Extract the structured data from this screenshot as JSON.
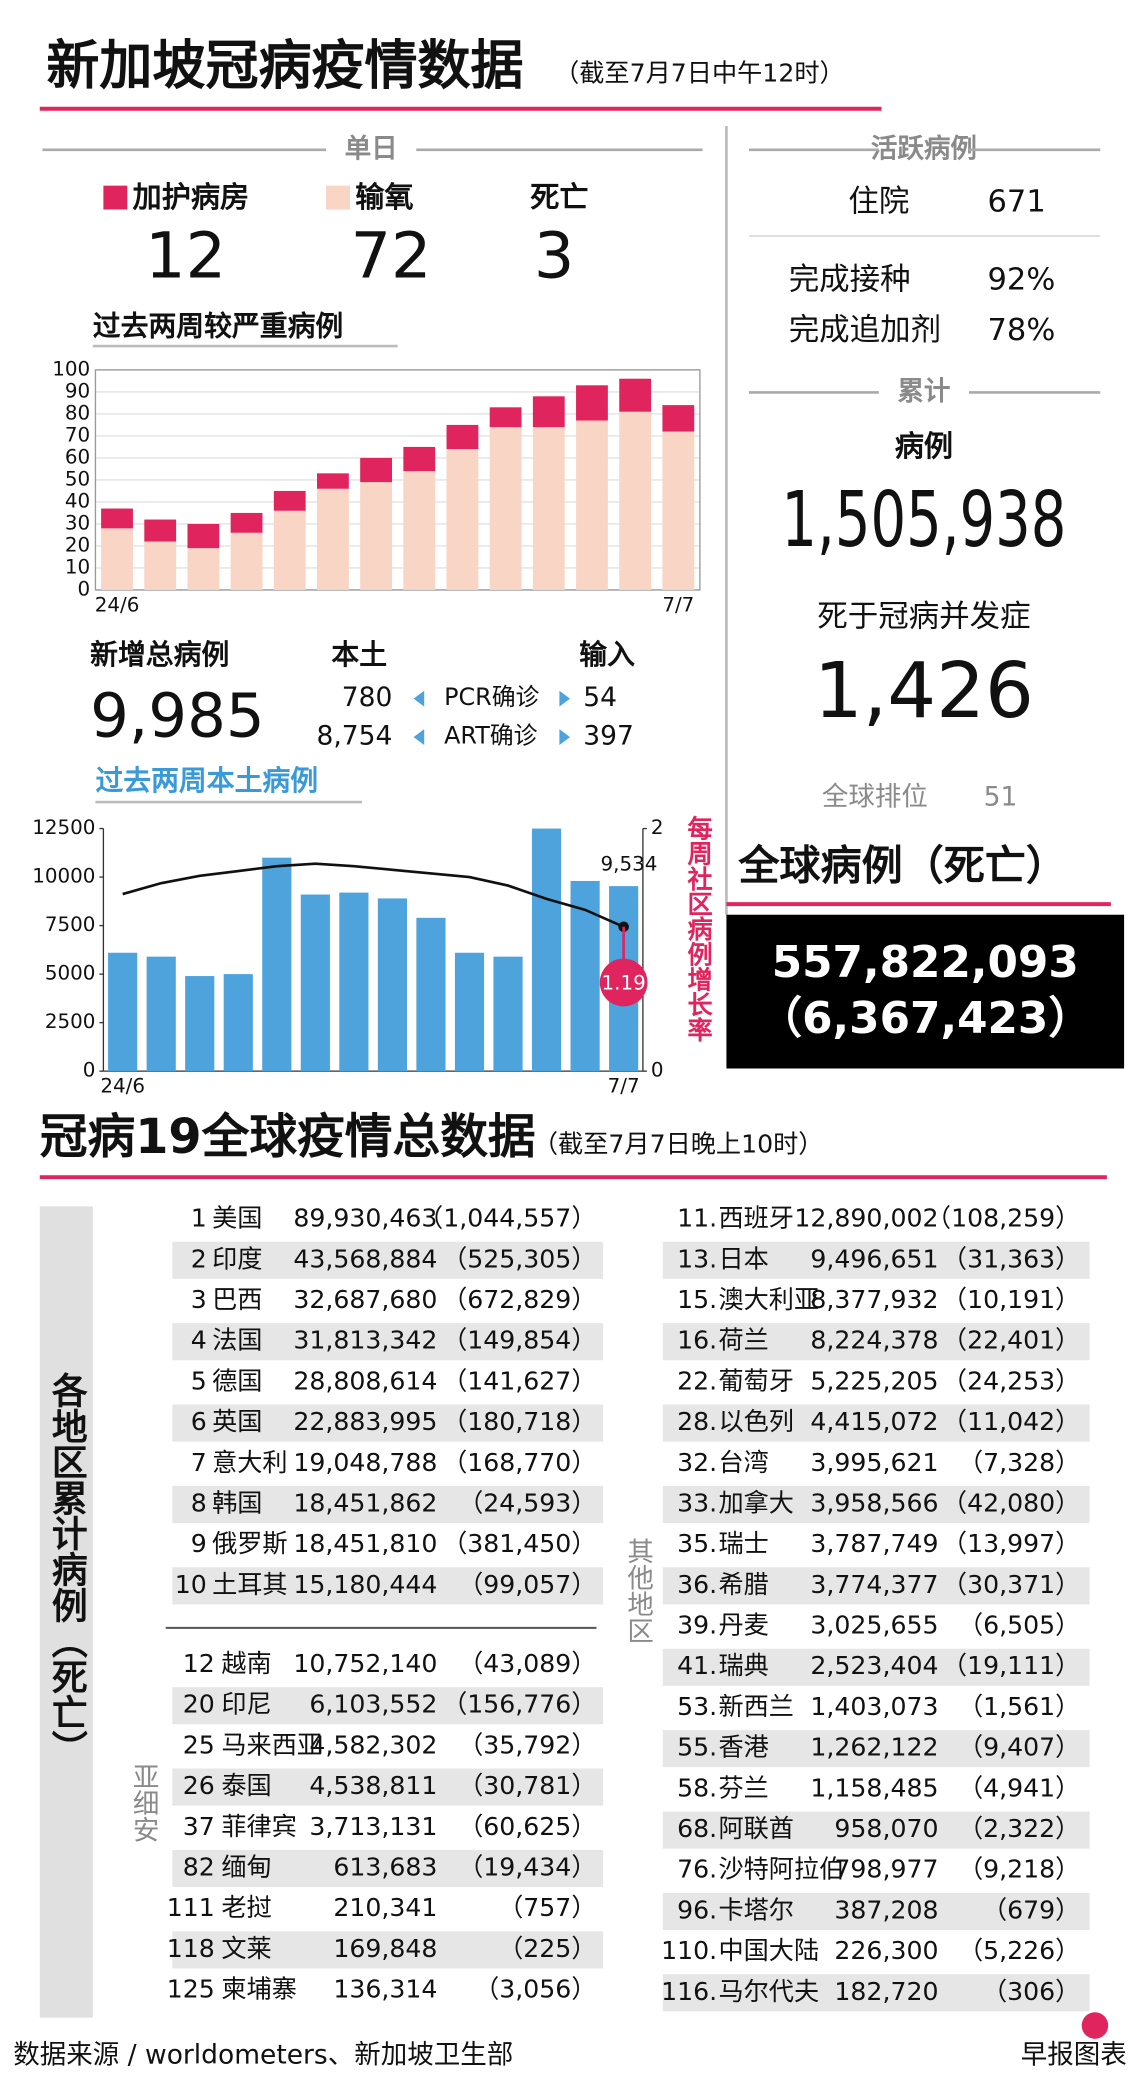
{
  "header": {
    "title": "新加坡冠病疫情数据",
    "note": "（截至7月7日中午12时）"
  },
  "daily": {
    "label": "单日",
    "icu": 12,
    "oxygen": 72,
    "death_label": "死亡",
    "deaths": 3
  },
  "chart_data": [
    {
      "type": "stacked_bar",
      "title": "过去两周较严重病例",
      "categories": [
        "24/6",
        null,
        null,
        null,
        null,
        null,
        null,
        null,
        null,
        null,
        null,
        null,
        null,
        "7/7"
      ],
      "series": [
        {
          "name": "输氧",
          "color": "#f8d5c4",
          "values": [
            28,
            22,
            19,
            26,
            36,
            46,
            49,
            54,
            64,
            74,
            74,
            77,
            81,
            72
          ]
        },
        {
          "name": "加护病房",
          "color": "#e0245e",
          "values": [
            9,
            10,
            11,
            9,
            9,
            7,
            11,
            11,
            11,
            9,
            14,
            16,
            15,
            12
          ]
        }
      ],
      "ylim": [
        0,
        100
      ],
      "yticks": [
        0,
        10,
        20,
        30,
        40,
        50,
        60,
        70,
        80,
        90,
        100
      ],
      "grid": true
    },
    {
      "type": "bar_line",
      "title": "过去两周本土病例",
      "categories": [
        "24/6",
        null,
        null,
        null,
        null,
        null,
        null,
        null,
        null,
        null,
        null,
        null,
        null,
        "7/7"
      ],
      "series": [
        {
          "color": "#4ea3dd",
          "values": [
            6100,
            5900,
            4900,
            5000,
            11000,
            9100,
            9200,
            8900,
            7900,
            6100,
            5900,
            12500,
            9800,
            9534
          ],
          "value_labels": [
            null,
            null,
            null,
            null,
            null,
            null,
            null,
            null,
            null,
            null,
            null,
            null,
            null,
            "9,534"
          ]
        },
        {
          "color": "#111111",
          "axis": "y2",
          "values": [
            1.46,
            1.55,
            1.61,
            1.65,
            1.69,
            1.71,
            1.69,
            1.66,
            1.63,
            1.6,
            1.53,
            1.42,
            1.33,
            1.19
          ],
          "value_labels": [
            null,
            null,
            null,
            null,
            null,
            null,
            null,
            null,
            null,
            null,
            null,
            null,
            null,
            "1.19"
          ]
        }
      ],
      "ylim": [
        0,
        12500
      ],
      "yticks": [
        0,
        2500,
        5000,
        7500,
        10000,
        12500
      ],
      "y2lim": [
        0,
        2
      ],
      "y2ticks": [
        0,
        2
      ],
      "y2label": "每周社区病例增长率"
    }
  ],
  "new_cases": {
    "label": "新增总病例",
    "total": "9,985",
    "local_label": "本土",
    "import_label": "输入",
    "rows": [
      [
        "780",
        "PCR确诊",
        "54"
      ],
      [
        "8,754",
        "ART确诊",
        "397"
      ]
    ]
  },
  "active": {
    "label": "活跃病例",
    "hospital_label": "住院",
    "hospital": "671",
    "vaccinated_label": "完成接种",
    "vaccinated": "92%",
    "booster_label": "完成追加剂",
    "booster": "78%"
  },
  "cumulative": {
    "label": "累计",
    "cases_label": "病例",
    "cases": "1,505,938",
    "deaths_label": "死于冠病并发症",
    "deaths": "1,426",
    "rank_label": "全球排位",
    "rank": "51"
  },
  "world_total": {
    "label": "全球病例（死亡）",
    "cases": "557,822,093",
    "deaths": "（6,367,423）"
  },
  "global": {
    "title": "冠病19全球疫情总数据",
    "note": "（截至7月7日晚上10时）",
    "side_label": "各地区累计病例（死亡）",
    "top10": {
      "rows": [
        [
          "1",
          "美国",
          "89,930,463",
          "（1,044,557）"
        ],
        [
          "2",
          "印度",
          "43,568,884",
          "（525,305）"
        ],
        [
          "3",
          "巴西",
          "32,687,680",
          "（672,829）"
        ],
        [
          "4",
          "法国",
          "31,813,342",
          "（149,854）"
        ],
        [
          "5",
          "德国",
          "28,808,614",
          "（141,627）"
        ],
        [
          "6",
          "英国",
          "22,883,995",
          "（180,718）"
        ],
        [
          "7",
          "意大利",
          "19,048,788",
          "（168,770）"
        ],
        [
          "8",
          "韩国",
          "18,451,862",
          "（24,593）"
        ],
        [
          "9",
          "俄罗斯",
          "18,451,810",
          "（381,450）"
        ],
        [
          "10",
          "土耳其",
          "15,180,444",
          "（99,057）"
        ]
      ]
    },
    "asean": {
      "label": "亚细安",
      "rows": [
        [
          "12",
          "越南",
          "10,752,140",
          "（43,089）"
        ],
        [
          "20",
          "印尼",
          "6,103,552",
          "（156,776）"
        ],
        [
          "25",
          "马来西亚",
          "4,582,302",
          "（35,792）"
        ],
        [
          "26",
          "泰国",
          "4,538,811",
          "（30,781）"
        ],
        [
          "37",
          "菲律宾",
          "3,713,131",
          "（60,625）"
        ],
        [
          "82",
          "缅甸",
          "613,683",
          "（19,434）"
        ],
        [
          "111",
          "老挝",
          "210,341",
          "（757）"
        ],
        [
          "118",
          "文莱",
          "169,848",
          "（225）"
        ],
        [
          "125",
          "柬埔寨",
          "136,314",
          "（3,056）"
        ]
      ]
    },
    "others": {
      "label": "其他地区",
      "rows": [
        [
          "11.",
          "西班牙",
          "12,890,002",
          "（108,259）"
        ],
        [
          "13.",
          "日本",
          "9,496,651",
          "（31,363）"
        ],
        [
          "15.",
          "澳大利亚",
          "8,377,932",
          "（10,191）"
        ],
        [
          "16.",
          "荷兰",
          "8,224,378",
          "（22,401）"
        ],
        [
          "22.",
          "葡萄牙",
          "5,225,205",
          "（24,253）"
        ],
        [
          "28.",
          "以色列",
          "4,415,072",
          "（11,042）"
        ],
        [
          "32.",
          "台湾",
          "3,995,621",
          "（7,328）"
        ],
        [
          "33.",
          "加拿大",
          "3,958,566",
          "（42,080）"
        ],
        [
          "35.",
          "瑞士",
          "3,787,749",
          "（13,997）"
        ],
        [
          "36.",
          "希腊",
          "3,774,377",
          "（30,371）"
        ],
        [
          "39.",
          "丹麦",
          "3,025,655",
          "（6,505）"
        ],
        [
          "41.",
          "瑞典",
          "2,523,404",
          "（19,111）"
        ],
        [
          "53.",
          "新西兰",
          "1,403,073",
          "（1,561）"
        ],
        [
          "55.",
          "香港",
          "1,262,122",
          "（9,407）"
        ],
        [
          "58.",
          "芬兰",
          "1,158,485",
          "（4,941）"
        ],
        [
          "68.",
          "阿联酋",
          "958,070",
          "（2,322）"
        ],
        [
          "76.",
          "沙特阿拉伯",
          "798,977",
          "（9,218）"
        ],
        [
          "96.",
          "卡塔尔",
          "387,208",
          "（679）"
        ],
        [
          "110.",
          "中国大陆",
          "226,300",
          "（5,226）"
        ],
        [
          "116.",
          "马尔代夫",
          "182,720",
          "（306）"
        ]
      ]
    }
  },
  "footer": {
    "source": "数据来源 / worldometers、新加坡卫生部",
    "credit": "早报图表"
  }
}
